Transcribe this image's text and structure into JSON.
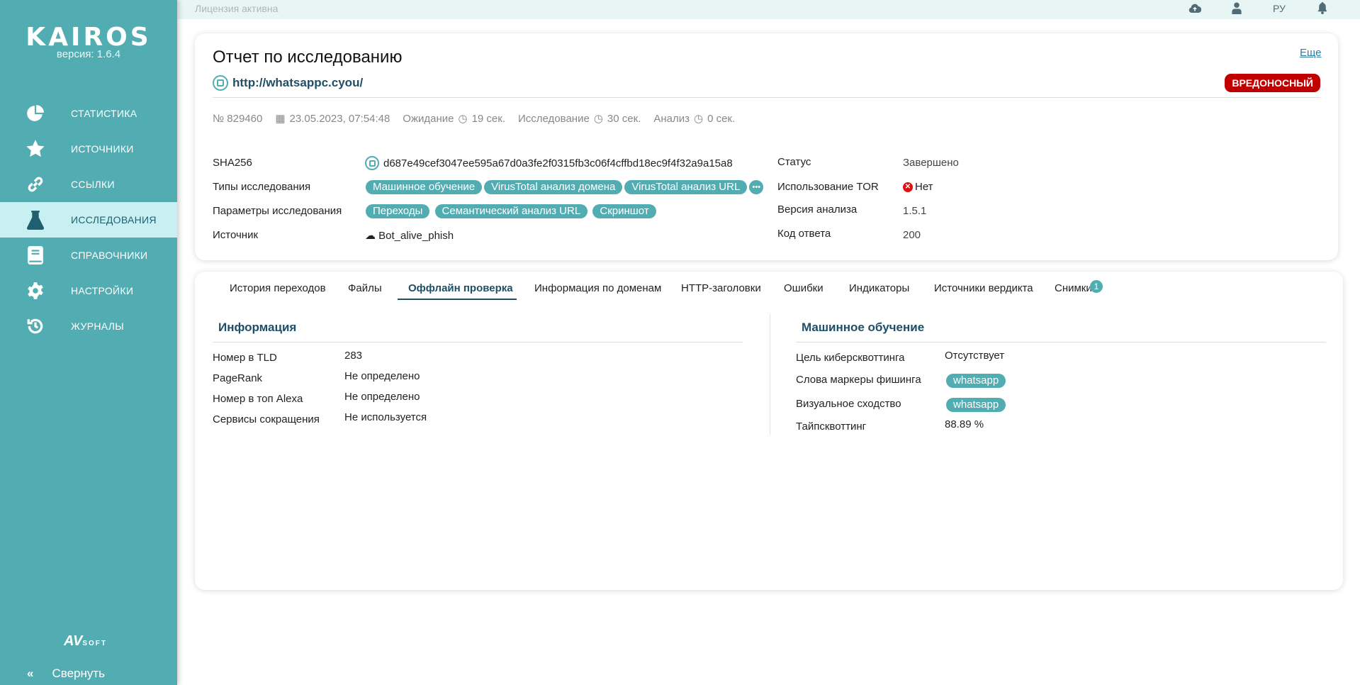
{
  "app": {
    "logo": "KAIROS",
    "version": "версия: 1.6.4",
    "vendor_logo": "AVSOFT",
    "collapse": "Свернуть"
  },
  "sidebar": {
    "items": [
      {
        "label": "СТАТИСТИКА",
        "icon": "pie-chart-icon"
      },
      {
        "label": "ИСТОЧНИКИ",
        "icon": "star-icon"
      },
      {
        "label": "ССЫЛКИ",
        "icon": "link-icon"
      },
      {
        "label": "ИССЛЕДОВАНИЯ",
        "icon": "flask-icon",
        "active": true
      },
      {
        "label": "СПРАВОЧНИКИ",
        "icon": "book-icon"
      },
      {
        "label": "НАСТРОЙКИ",
        "icon": "gear-icon"
      },
      {
        "label": "ЖУРНАЛЫ",
        "icon": "history-icon"
      }
    ]
  },
  "topbar": {
    "license": "Лицензия активна",
    "lang": "РУ"
  },
  "report": {
    "title": "Отчет по исследованию",
    "url": "http://whatsappc.cyou/",
    "more": "Еще",
    "verdict": "ВРЕДОНОСНЫЙ",
    "meta": {
      "number": "№ 829460",
      "date": "23.05.2023, 07:54:48",
      "wait_label": "Ожидание",
      "wait": "19 сек.",
      "research_label": "Исследование",
      "research": "30 сек.",
      "analysis_label": "Анализ",
      "analysis": "0 сек."
    },
    "sha_label": "SHA256",
    "sha": "d687e49cef3047ee595a67d0a3fe2f0315fb3c06f4cffbd18ec9f4f32a9a15a8",
    "types_label": "Типы исследования",
    "types": [
      "Машинное обучение",
      "VirusTotal анализ домена",
      "VirusTotal анализ URL"
    ],
    "params_label": "Параметры исследования",
    "params": [
      "Переходы",
      "Семантический анализ URL",
      "Скриншот"
    ],
    "source_label": "Источник",
    "source": "Bot_alive_phish",
    "status_label": "Статус",
    "status": "Завершено",
    "tor_label": "Использование TOR",
    "tor": "Нет",
    "version_label": "Версия анализа",
    "version": "1.5.1",
    "code_label": "Код ответа",
    "code": "200"
  },
  "tabs": [
    {
      "label": "История переходов"
    },
    {
      "label": "Файлы"
    },
    {
      "label": "Оффлайн проверка",
      "active": true
    },
    {
      "label": "Информация по доменам"
    },
    {
      "label": "HTTP-заголовки"
    },
    {
      "label": "Ошибки"
    },
    {
      "label": "Индикаторы"
    },
    {
      "label": "Источники вердикта"
    },
    {
      "label": "Снимки",
      "badge": "1"
    }
  ],
  "info": {
    "title": "Информация",
    "rows": [
      {
        "label": "Номер в TLD",
        "value": "283"
      },
      {
        "label": "PageRank",
        "value": "Не определено"
      },
      {
        "label": "Номер в топ Alexa",
        "value": "Не определено"
      },
      {
        "label": "Сервисы сокращения",
        "value": "Не используется"
      }
    ]
  },
  "ml": {
    "title": "Машинное обучение",
    "rows": [
      {
        "label": "Цель киберсквоттинга",
        "value": "Отсутствует"
      },
      {
        "label": "Слова маркеры фишинга",
        "tag": "whatsapp"
      },
      {
        "label": "Визуальное сходство",
        "tag": "whatsapp"
      },
      {
        "label": "Тайпсквоттинг",
        "value": "88.89 %"
      }
    ]
  },
  "colors": {
    "accent": "#52adb3",
    "active_bg": "#c8f0f2",
    "verdict": "#c00000",
    "heading": "#1f4e66"
  }
}
